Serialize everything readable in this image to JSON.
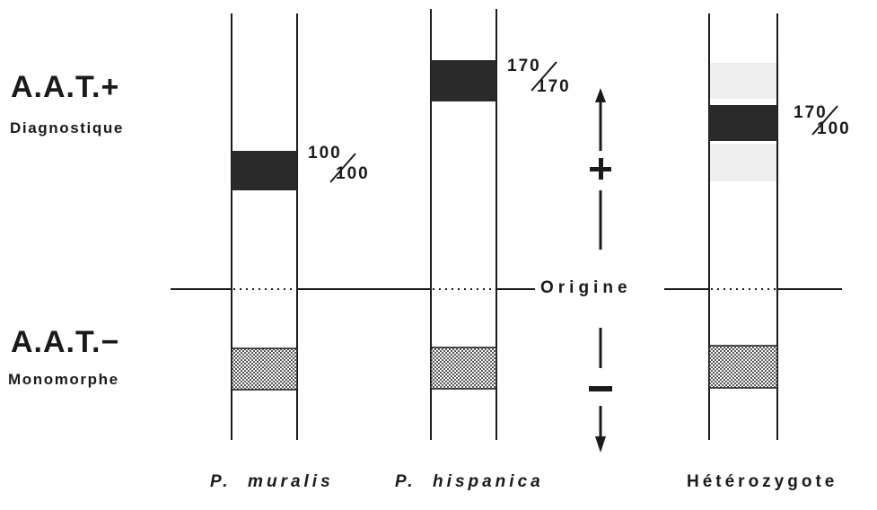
{
  "labels": {
    "aat_plus": "A.A.T.+",
    "aat_plus_sub": "Diagnostique",
    "aat_minus": "A.A.T.−",
    "aat_minus_sub": "Monomorphe",
    "origin": "Origine"
  },
  "lanes": [
    {
      "name": "P.  muralis",
      "genotype_top": "100",
      "genotype_bottom": "100"
    },
    {
      "name": "P.  hispanica",
      "genotype_top": "170",
      "genotype_bottom": "170"
    },
    {
      "name": "Hétérozygote",
      "genotype_top": "170",
      "genotype_bottom": "100"
    }
  ],
  "colors": {
    "ink": "#1a1a1a",
    "band_dark": "#2a2a2a",
    "band_faint": "#eeeeee",
    "stipple": "#555555"
  }
}
